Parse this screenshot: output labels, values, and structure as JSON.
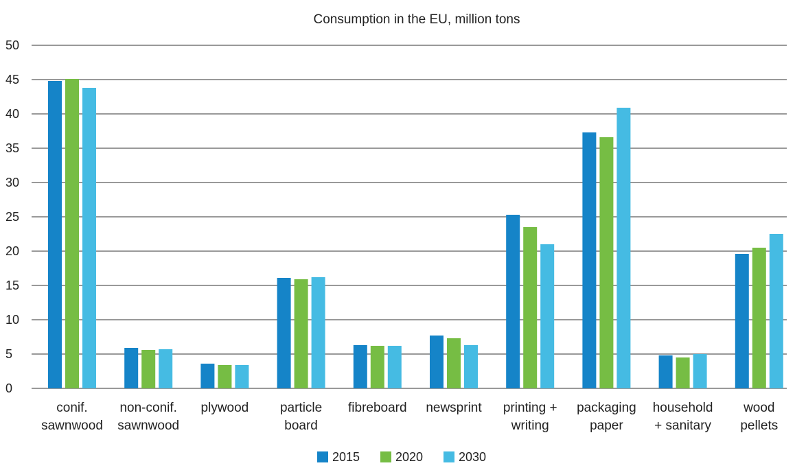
{
  "chart_data": {
    "type": "bar",
    "title": "Consumption in the EU, million tons",
    "xlabel": "",
    "ylabel": "",
    "ylim": [
      0,
      50
    ],
    "yticks": [
      "0",
      "5",
      "10",
      "15",
      "20",
      "25",
      "30",
      "35",
      "40",
      "45",
      "50"
    ],
    "grid": true,
    "legend_position": "bottom",
    "categories": [
      [
        "conif.",
        "sawnwood"
      ],
      [
        "non-conif.",
        "sawnwood"
      ],
      [
        "plywood"
      ],
      [
        "particle",
        "board"
      ],
      [
        "fibreboard"
      ],
      [
        "newsprint"
      ],
      [
        "printing +",
        "writing"
      ],
      [
        "packaging",
        "paper"
      ],
      [
        "household",
        "+ sanitary"
      ],
      [
        "wood",
        "pellets"
      ]
    ],
    "series": [
      {
        "name": "2015",
        "color": "#1584c8",
        "values": [
          44.8,
          5.9,
          3.6,
          16.1,
          6.3,
          7.7,
          25.3,
          37.3,
          4.8,
          19.6
        ]
      },
      {
        "name": "2020",
        "color": "#76bd44",
        "values": [
          45.1,
          5.6,
          3.4,
          15.9,
          6.2,
          7.3,
          23.5,
          36.6,
          4.5,
          20.5
        ]
      },
      {
        "name": "2030",
        "color": "#45bbe3",
        "values": [
          43.8,
          5.7,
          3.4,
          16.2,
          6.2,
          6.3,
          21.0,
          40.9,
          5.0,
          22.5
        ]
      }
    ]
  }
}
